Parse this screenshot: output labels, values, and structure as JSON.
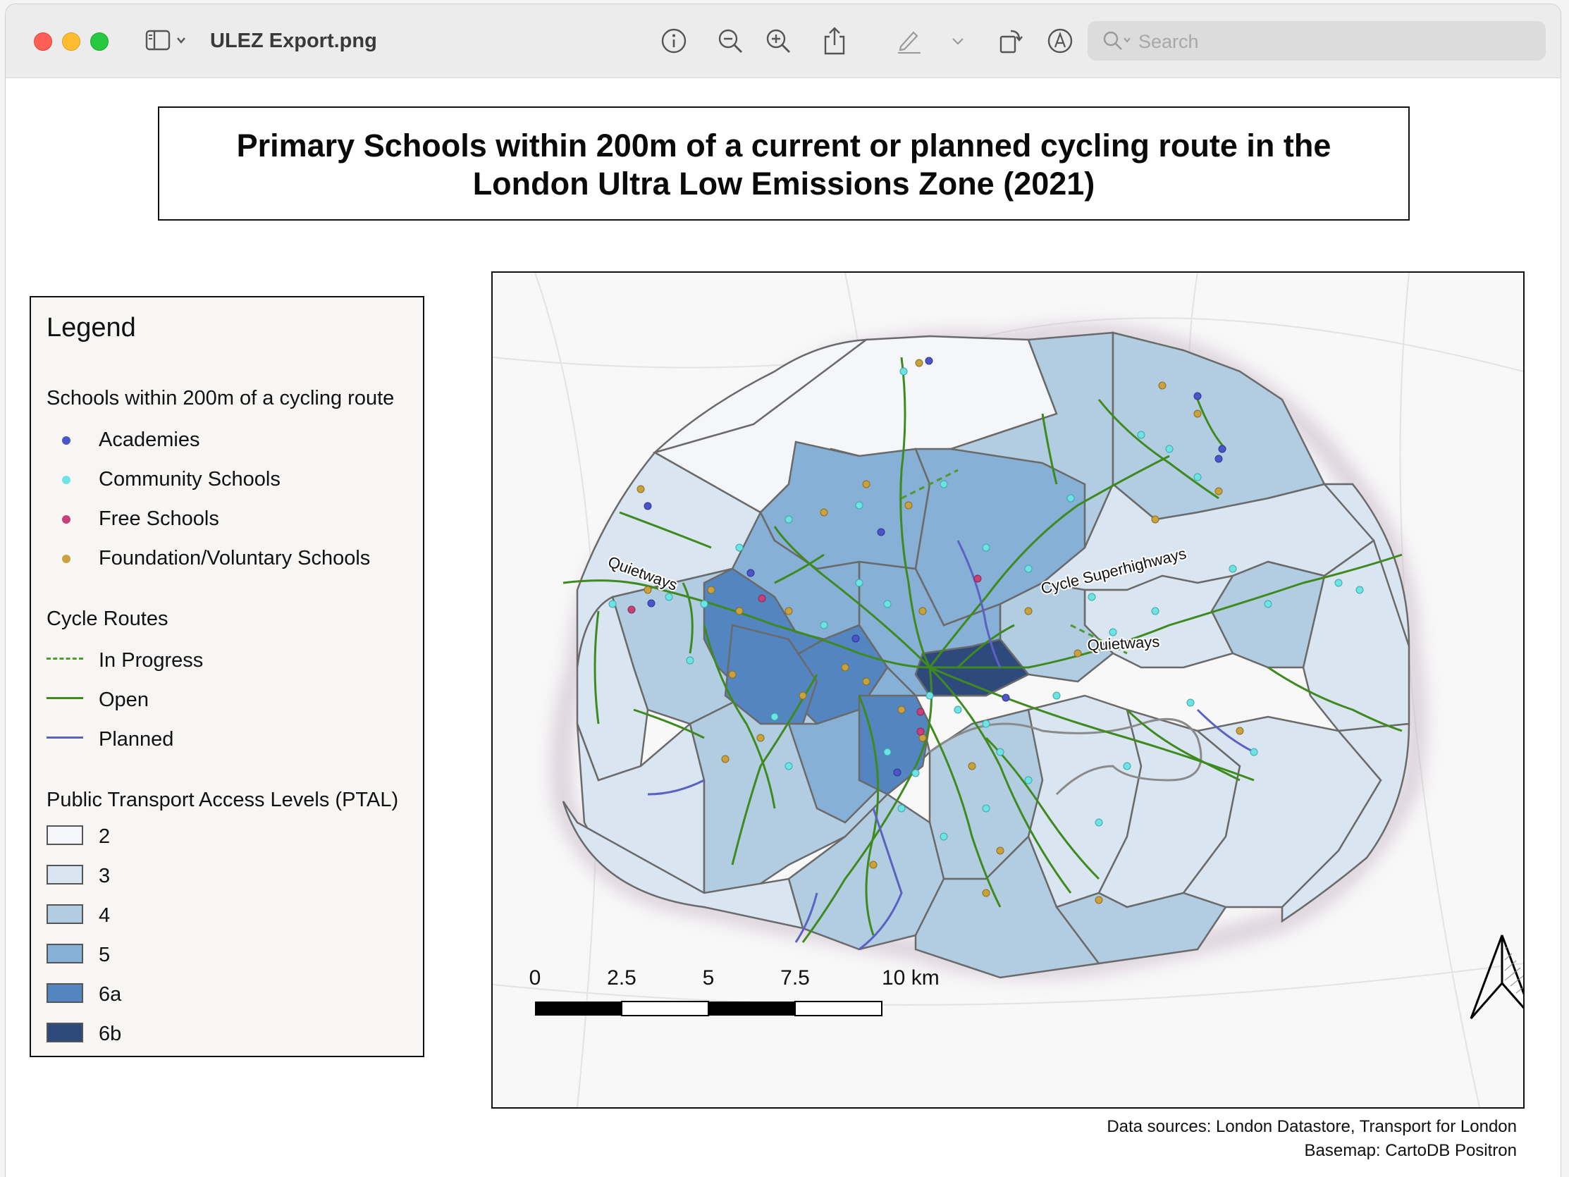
{
  "window": {
    "file_title": "ULEZ Export.png",
    "search_placeholder": "Search",
    "toolbar_icons": [
      "sidebar-icon",
      "chevron-down-icon",
      "info-icon",
      "zoom-out-icon",
      "zoom-in-icon",
      "share-icon",
      "markup-pen-icon",
      "chevron-down-icon",
      "rotate-icon",
      "annotate-icon",
      "search-icon"
    ]
  },
  "map": {
    "title_line1": "Primary Schools within 200m of a current or planned cycling route in the",
    "title_line2": "London Ultra Low Emissions Zone (2021)",
    "legend": {
      "title": "Legend",
      "schools_heading": "Schools within 200m of a cycling route",
      "schools": [
        {
          "label": "Academies",
          "color": "#4b55c8"
        },
        {
          "label": "Community Schools",
          "color": "#6fe3e3"
        },
        {
          "label": "Free Schools",
          "color": "#c8407a"
        },
        {
          "label": "Foundation/Voluntary Schools",
          "color": "#c9a23d"
        }
      ],
      "routes_heading": "Cycle Routes",
      "routes": [
        {
          "label": "In Progress",
          "color": "#4e9a2a",
          "style": "dashed"
        },
        {
          "label": "Open",
          "color": "#3f8a1f",
          "style": "solid"
        },
        {
          "label": "Planned",
          "color": "#5b62c2",
          "style": "solid"
        }
      ],
      "ptal_heading": "Public Transport Access Levels (PTAL)",
      "ptal": [
        {
          "label": "2",
          "color": "#f4f6fa"
        },
        {
          "label": "3",
          "color": "#d9e5f1"
        },
        {
          "label": "4",
          "color": "#b2cde2"
        },
        {
          "label": "5",
          "color": "#86b0d6"
        },
        {
          "label": "6a",
          "color": "#5385c0"
        },
        {
          "label": "6b",
          "color": "#2e4a7c"
        }
      ]
    },
    "route_labels": [
      "Quietways",
      "Cycle Superhighways",
      "Quietways"
    ],
    "scale_labels": [
      "0",
      "2.5",
      "5",
      "7.5",
      "10 km"
    ],
    "sources_line1": "Data sources: London Datastore, Transport for London",
    "sources_line2": "Basemap: CartoDB Positron"
  }
}
